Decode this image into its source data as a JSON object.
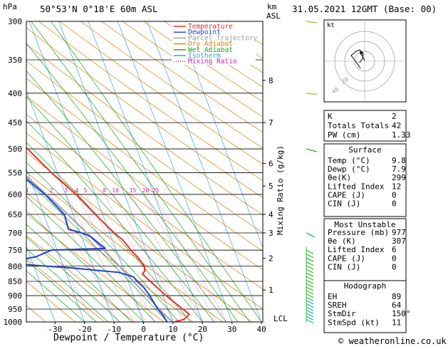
{
  "header": {
    "unit_hpa": "hPa",
    "location": "50°53'N  0°18'E  60m  ASL",
    "km_unit": "km",
    "asl": "ASL",
    "datetime": "31.05.2021  12GMT  (Base: 00)"
  },
  "footer": {
    "copyright": "© weatheronline.co.uk"
  },
  "chart_data": {
    "type": "skew-t",
    "xlabel": "Dewpoint / Temperature (°C)",
    "mixing_ratio_label": "Mixing Ratio (g/kg)",
    "x_ticks": [
      "-30",
      "-20",
      "-10",
      "0",
      "10",
      "20",
      "30",
      "40"
    ],
    "x_values": [
      -30,
      -20,
      -10,
      0,
      10,
      20,
      30,
      40
    ],
    "pressure_levels": [
      300,
      350,
      400,
      450,
      500,
      550,
      600,
      650,
      700,
      750,
      800,
      850,
      900,
      950,
      1000
    ],
    "km_ticks": [
      {
        "p": 380,
        "label": "8"
      },
      {
        "p": 450,
        "label": "7"
      },
      {
        "p": 530,
        "label": "6"
      },
      {
        "p": 580,
        "label": "5"
      },
      {
        "p": 650,
        "label": "4"
      },
      {
        "p": 700,
        "label": "3"
      },
      {
        "p": 775,
        "label": "2"
      },
      {
        "p": 880,
        "label": "1"
      }
    ],
    "lcl_label": "LCL",
    "mixing_ratio_values": [
      "1",
      "2",
      "3",
      "4",
      "5",
      "8",
      "10",
      "15",
      "20",
      "25"
    ],
    "legend": [
      {
        "name": "Temperature",
        "color": "#e8302a",
        "dash": "solid"
      },
      {
        "name": "Dewpoint",
        "color": "#1f3fd6",
        "dash": "solid"
      },
      {
        "name": "Parcel Trajectory",
        "color": "#999999",
        "dash": "solid"
      },
      {
        "name": "Dry Adiabat",
        "color": "#e07b00",
        "dash": "solid"
      },
      {
        "name": "Wet Adiabat",
        "color": "#1aa31a",
        "dash": "solid"
      },
      {
        "name": "Isotherm",
        "color": "#2fa8d8",
        "dash": "solid"
      },
      {
        "name": "Mixing Ratio",
        "color": "#cc22aa",
        "dash": "dotted"
      }
    ],
    "temperature": [
      {
        "p": 1000,
        "t": 10.5
      },
      {
        "p": 990,
        "t": 14.0
      },
      {
        "p": 970,
        "t": 16.5
      },
      {
        "p": 950,
        "t": 15.0
      },
      {
        "p": 925,
        "t": 13.0
      },
      {
        "p": 900,
        "t": 11.0
      },
      {
        "p": 870,
        "t": 9.0
      },
      {
        "p": 850,
        "t": 7.5
      },
      {
        "p": 825,
        "t": 5.8
      },
      {
        "p": 815,
        "t": 7.0
      },
      {
        "p": 800,
        "t": 7.5
      },
      {
        "p": 775,
        "t": 6.5
      },
      {
        "p": 750,
        "t": 5.0
      },
      {
        "p": 720,
        "t": 3.5
      },
      {
        "p": 700,
        "t": 1.5
      },
      {
        "p": 650,
        "t": -2.5
      },
      {
        "p": 600,
        "t": -6.5
      },
      {
        "p": 550,
        "t": -12.0
      },
      {
        "p": 500,
        "t": -17.0
      },
      {
        "p": 450,
        "t": -23.0
      },
      {
        "p": 400,
        "t": -29.5
      },
      {
        "p": 350,
        "t": -37.5
      },
      {
        "p": 300,
        "t": -46.5
      }
    ],
    "dewpoint": [
      {
        "p": 1000,
        "t": 8.0
      },
      {
        "p": 975,
        "t": 7.5
      },
      {
        "p": 950,
        "t": 6.5
      },
      {
        "p": 900,
        "t": 5.5
      },
      {
        "p": 870,
        "t": 4.5
      },
      {
        "p": 850,
        "t": 3.0
      },
      {
        "p": 835,
        "t": 2.5
      },
      {
        "p": 820,
        "t": -2.0
      },
      {
        "p": 805,
        "t": -18.0
      },
      {
        "p": 790,
        "t": -40.0
      },
      {
        "p": 770,
        "t": -28.0
      },
      {
        "p": 750,
        "t": -22.0
      },
      {
        "p": 745,
        "t": -3.5
      },
      {
        "p": 730,
        "t": -5.0
      },
      {
        "p": 710,
        "t": -7.0
      },
      {
        "p": 700,
        "t": -9.5
      },
      {
        "p": 690,
        "t": -13.5
      },
      {
        "p": 650,
        "t": -13.0
      },
      {
        "p": 600,
        "t": -17.0
      },
      {
        "p": 550,
        "t": -23.0
      },
      {
        "p": 530,
        "t": -24.0
      },
      {
        "p": 510,
        "t": -30.0
      },
      {
        "p": 500,
        "t": -36.0
      },
      {
        "p": 450,
        "t": -43.0
      },
      {
        "p": 400,
        "t": -50.5
      },
      {
        "p": 385,
        "t": -48.0
      },
      {
        "p": 365,
        "t": -52.0
      },
      {
        "p": 350,
        "t": -53.0
      },
      {
        "p": 330,
        "t": -52.0
      },
      {
        "p": 310,
        "t": -56.0
      },
      {
        "p": 300,
        "t": -57.0
      }
    ],
    "parcel": [
      {
        "p": 1000,
        "t": 9.8
      },
      {
        "p": 975,
        "t": 8.3
      },
      {
        "p": 950,
        "t": 7.0
      },
      {
        "p": 900,
        "t": 4.5
      },
      {
        "p": 850,
        "t": 1.8
      },
      {
        "p": 800,
        "t": -1.0
      },
      {
        "p": 750,
        "t": -4.2
      },
      {
        "p": 700,
        "t": -7.8
      },
      {
        "p": 650,
        "t": -11.8
      },
      {
        "p": 600,
        "t": -16.5
      },
      {
        "p": 550,
        "t": -21.8
      },
      {
        "p": 500,
        "t": -27.8
      },
      {
        "p": 450,
        "t": -34.8
      },
      {
        "p": 400,
        "t": -42.8
      },
      {
        "p": 350,
        "t": -51.5
      },
      {
        "p": 300,
        "t": -60.5
      }
    ]
  },
  "indices": {
    "k_label": "K",
    "k": "2",
    "tt_label": "Totals Totals",
    "tt": "42",
    "pw_label": "PW (cm)",
    "pw": "1.33"
  },
  "surface": {
    "title": "Surface",
    "rows": [
      {
        "label": "Temp (°C)",
        "value": "9.8"
      },
      {
        "label": "Dewp (°C)",
        "value": "7.9"
      },
      {
        "label": "θe(K)",
        "value": "299"
      },
      {
        "label": "Lifted Index",
        "value": "12"
      },
      {
        "label": "CAPE (J)",
        "value": "0"
      },
      {
        "label": "CIN (J)",
        "value": "0"
      }
    ]
  },
  "most_unstable": {
    "title": "Most Unstable",
    "rows": [
      {
        "label": "Pressure (mb)",
        "value": "977"
      },
      {
        "label": "θe (K)",
        "value": "307"
      },
      {
        "label": "Lifted Index",
        "value": "6"
      },
      {
        "label": "CAPE (J)",
        "value": "0"
      },
      {
        "label": "CIN (J)",
        "value": "0"
      }
    ]
  },
  "hodograph_table": {
    "title": "Hodograph",
    "rows": [
      {
        "label": "EH",
        "value": "89"
      },
      {
        "label": "SREH",
        "value": "64"
      },
      {
        "label": "StmDir",
        "value": "150°"
      },
      {
        "label": "StmSpd (kt)",
        "value": "11"
      }
    ]
  },
  "hodograph": {
    "unit": "kt",
    "ring_labels": [
      "20",
      "40"
    ]
  }
}
